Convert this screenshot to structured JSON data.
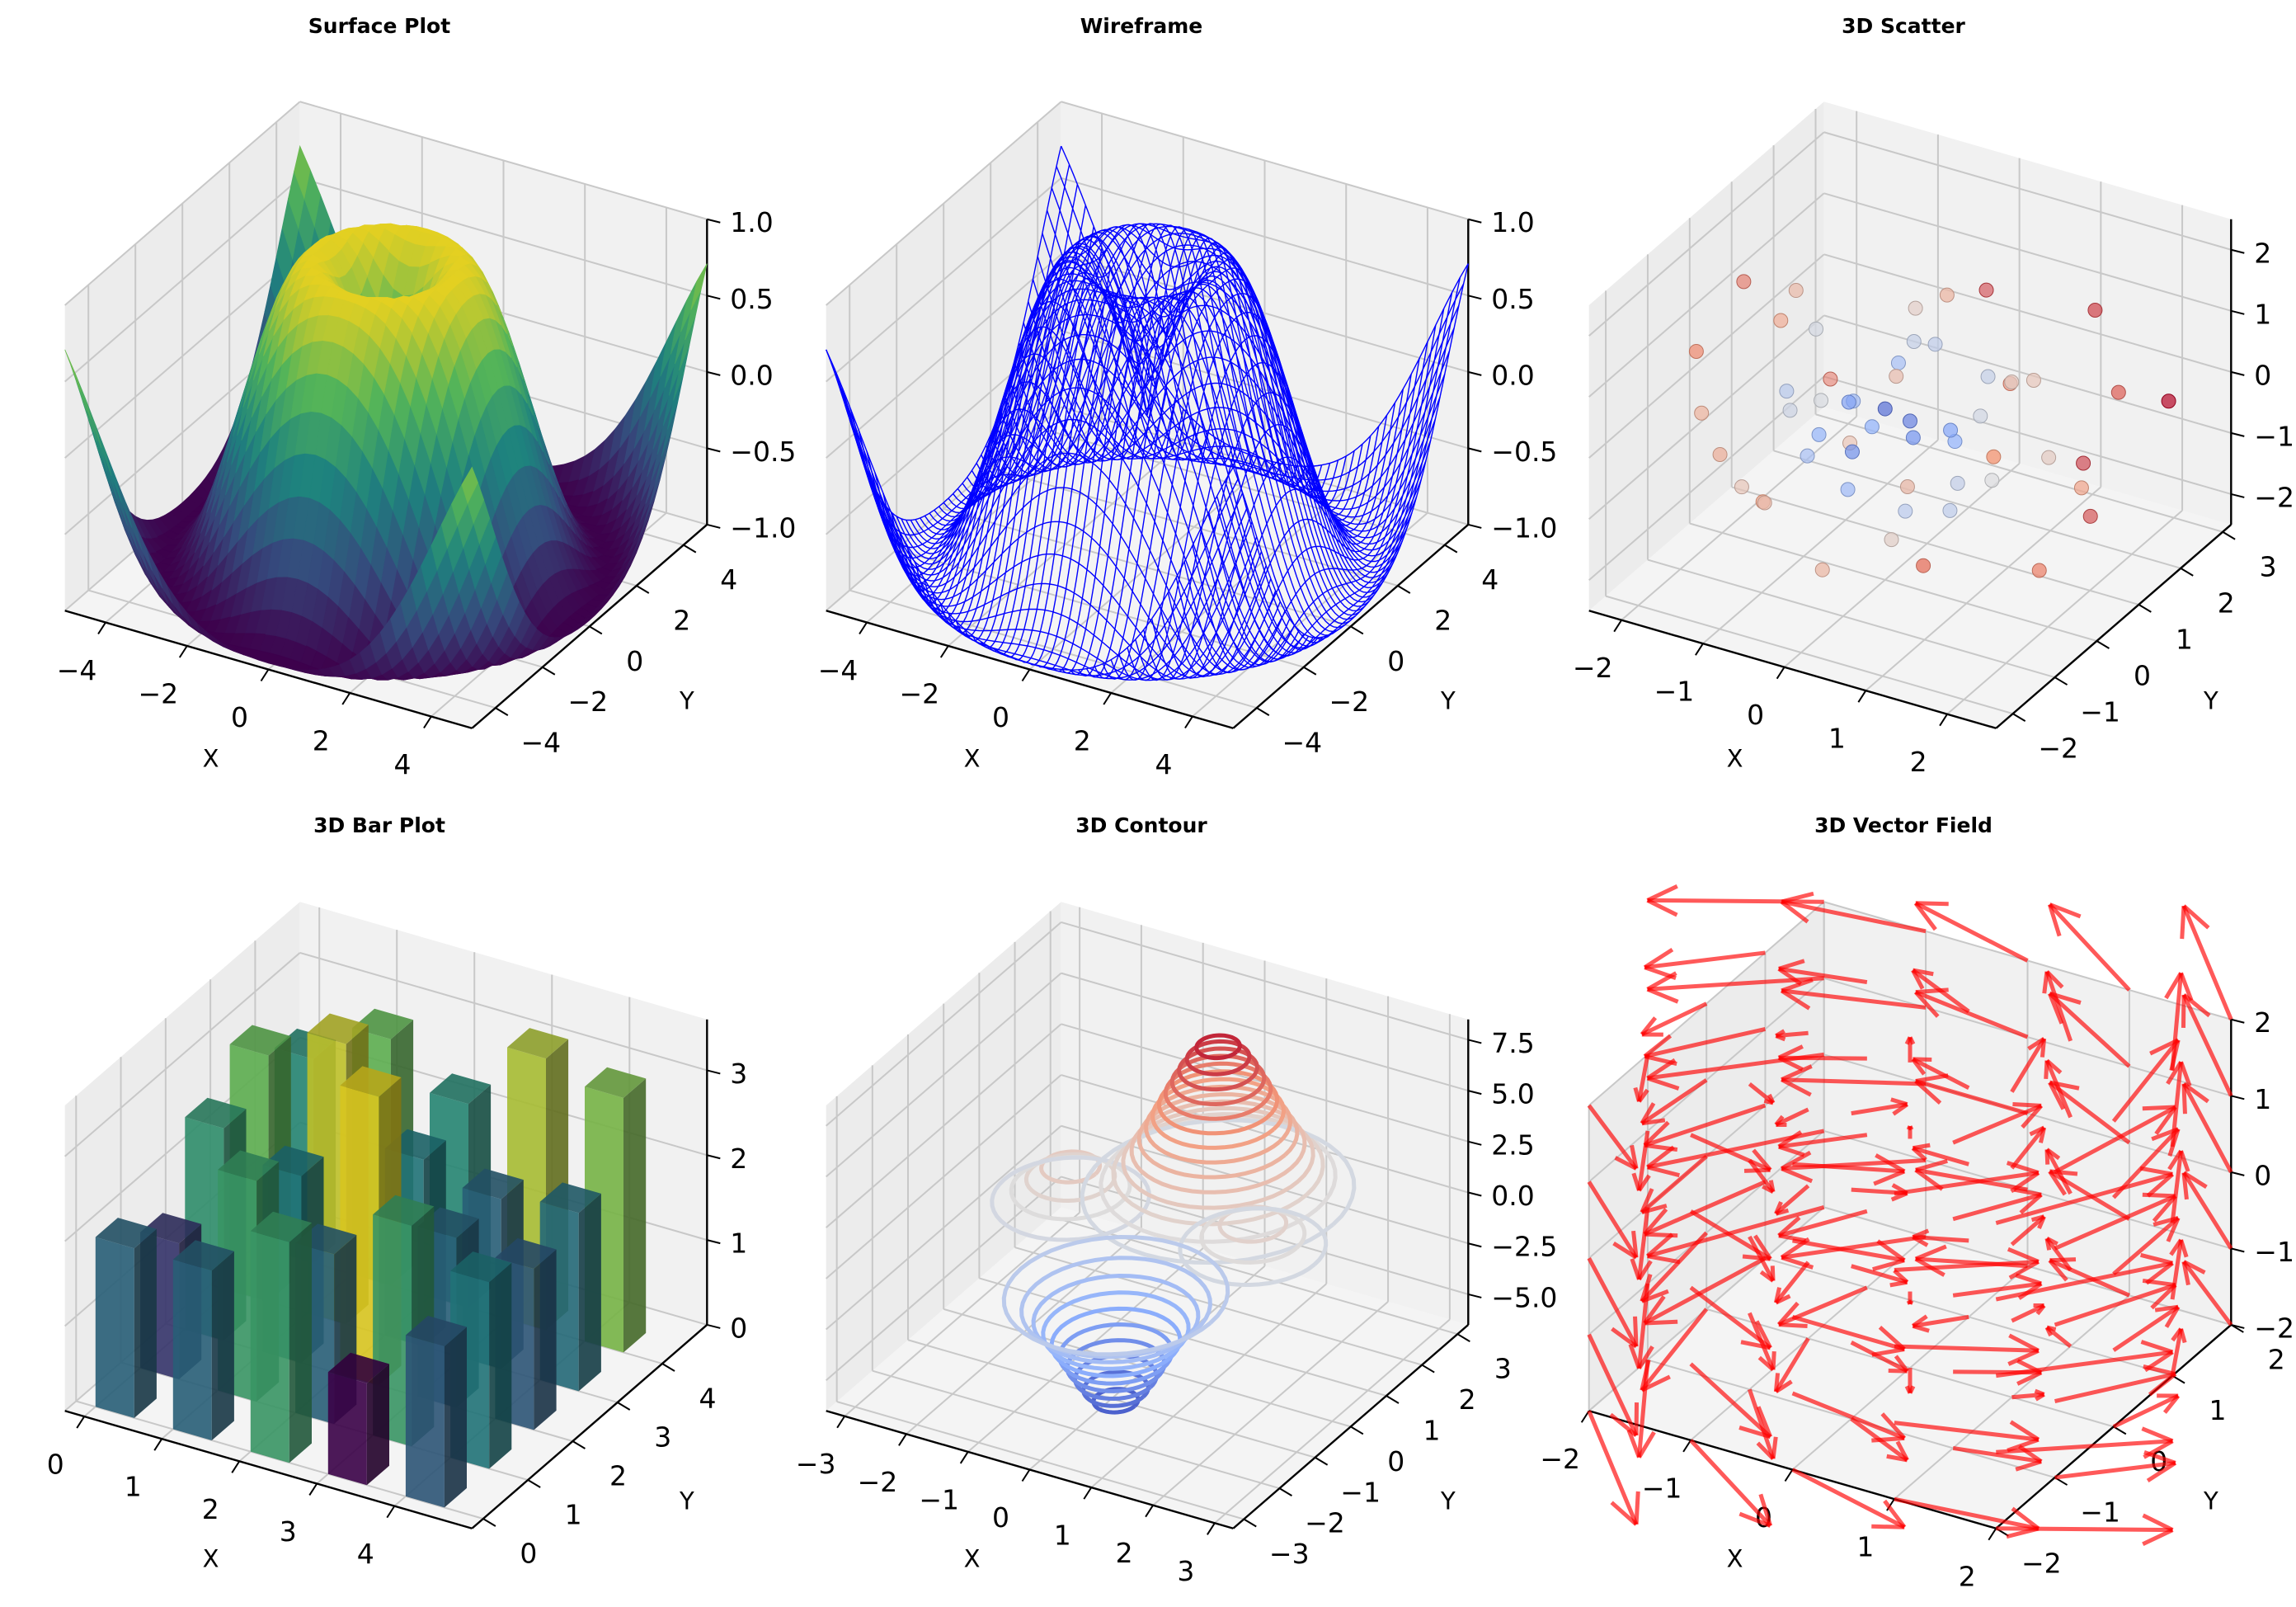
{
  "chart_data": [
    {
      "type": "surface",
      "title": "Surface Plot",
      "xlabel": "X",
      "ylabel": "Y",
      "function": "z = sin(sqrt(x^2 + y^2))",
      "xlim": [
        -5,
        5
      ],
      "ylim": [
        -5,
        5
      ],
      "zlim": [
        -1,
        1
      ],
      "xticks": [
        "−4",
        "−2",
        "0",
        "2",
        "4"
      ],
      "yticks": [
        "−4",
        "−2",
        "0",
        "2",
        "4"
      ],
      "zticks": [
        "−1.0",
        "−0.5",
        "0.0",
        "0.5",
        "1.0"
      ],
      "colormap": "viridis",
      "grid": true
    },
    {
      "type": "wireframe",
      "title": "Wireframe",
      "xlabel": "X",
      "ylabel": "Y",
      "function": "z = sin(sqrt(x^2 + y^2))",
      "xlim": [
        -5,
        5
      ],
      "ylim": [
        -5,
        5
      ],
      "zlim": [
        -1,
        1
      ],
      "xticks": [
        "−4",
        "−2",
        "0",
        "2",
        "4"
      ],
      "yticks": [
        "−4",
        "−2",
        "0",
        "2",
        "4"
      ],
      "zticks": [
        "−1.0",
        "−0.5",
        "0.0",
        "0.5",
        "1.0"
      ],
      "line_color": "#0000ff",
      "grid": true
    },
    {
      "type": "scatter",
      "title": "3D Scatter",
      "xlabel": "X",
      "ylabel": "Y",
      "xlim": [
        -2.4,
        2.6
      ],
      "ylim": [
        -2.4,
        3.2
      ],
      "zlim": [
        -2.5,
        2.5
      ],
      "xticks": [
        "−2",
        "−1",
        "0",
        "1",
        "2"
      ],
      "yticks": [
        "−2",
        "−1",
        "0",
        "1",
        "2",
        "3"
      ],
      "zticks": [
        "−2",
        "−1",
        "0",
        "1",
        "2"
      ],
      "colormap": "coolwarm",
      "color_by": "distance from origin",
      "points": [
        [
          0.5,
          -0.3,
          0.2
        ],
        [
          -1.2,
          0.8,
          -0.5
        ],
        [
          1.6,
          1.9,
          1.4
        ],
        [
          0.1,
          0.4,
          -0.1
        ],
        [
          -0.6,
          -1.1,
          0.7
        ],
        [
          2.1,
          -0.4,
          -1.3
        ],
        [
          -1.9,
          1.2,
          0.3
        ],
        [
          0.8,
          0.9,
          0.6
        ],
        [
          -0.2,
          -0.5,
          -0.8
        ],
        [
          1.1,
          -1.6,
          0.4
        ],
        [
          -0.9,
          0.1,
          1.2
        ],
        [
          0.3,
          2.4,
          -0.6
        ],
        [
          1.7,
          0.6,
          -0.2
        ],
        [
          -1.4,
          -0.7,
          -1.1
        ],
        [
          0.6,
          -0.9,
          1.6
        ],
        [
          -0.4,
          1.5,
          0.9
        ],
        [
          2.3,
          1.1,
          0.8
        ],
        [
          -2.1,
          -0.3,
          -0.4
        ],
        [
          0.0,
          0.0,
          0.3
        ],
        [
          0.9,
          -0.2,
          -0.9
        ],
        [
          -0.7,
          0.6,
          -0.2
        ],
        [
          1.3,
          2.2,
          -1.4
        ],
        [
          -1.1,
          -1.8,
          0.2
        ],
        [
          0.4,
          0.7,
          1.9
        ],
        [
          -0.1,
          -1.3,
          -1.6
        ],
        [
          1.9,
          -1.1,
          0.9
        ],
        [
          -1.6,
          1.8,
          -0.9
        ],
        [
          0.7,
          0.2,
          0.1
        ],
        [
          -0.3,
          0.9,
          0.4
        ],
        [
          0.2,
          -0.7,
          0.5
        ],
        [
          1.4,
          0.3,
          1.1
        ],
        [
          -0.8,
          -0.3,
          -0.6
        ],
        [
          0.5,
          1.3,
          -0.4
        ],
        [
          -1.3,
          0.4,
          1.5
        ],
        [
          2.0,
          0.8,
          -0.7
        ],
        [
          -0.5,
          -1.9,
          -0.3
        ],
        [
          1.0,
          1.6,
          0.2
        ],
        [
          -2.2,
          0.9,
          1.0
        ],
        [
          0.3,
          -0.1,
          -1.2
        ],
        [
          -0.6,
          0.3,
          0.0
        ],
        [
          1.2,
          -0.6,
          -0.1
        ],
        [
          -1.0,
          1.1,
          -1.3
        ],
        [
          0.8,
          -1.4,
          -0.7
        ],
        [
          -0.2,
          2.8,
          0.5
        ],
        [
          1.5,
          -2.0,
          -0.5
        ],
        [
          -1.7,
          -1.2,
          1.3
        ],
        [
          0.6,
          0.5,
          -0.3
        ],
        [
          -0.4,
          -0.8,
          0.2
        ],
        [
          0.1,
          1.0,
          0.8
        ],
        [
          2.4,
          2.1,
          0.1
        ],
        [
          -1.5,
          0.0,
          -1.8
        ],
        [
          0.9,
          0.8,
          -1.0
        ],
        [
          -0.9,
          -0.6,
          0.6
        ],
        [
          0.2,
          0.3,
          1.3
        ],
        [
          1.8,
          1.4,
          -1.6
        ],
        [
          -0.3,
          -0.2,
          -0.4
        ]
      ],
      "grid": true
    },
    {
      "type": "bar3d",
      "title": "3D Bar Plot",
      "xlabel": "X",
      "ylabel": "Y",
      "xlim": [
        -0.25,
        5.0
      ],
      "ylim": [
        -0.25,
        5.0
      ],
      "zlim": [
        0,
        3.6
      ],
      "xticks": [
        "0",
        "1",
        "2",
        "3",
        "4"
      ],
      "yticks": [
        "0",
        "1",
        "2",
        "3",
        "4"
      ],
      "zticks": [
        "0",
        "1",
        "2",
        "3"
      ],
      "colormap": "viridis",
      "heights": [
        [
          2.0,
          1.6,
          2.5,
          2.9,
          2.4
        ],
        [
          2.0,
          2.6,
          2.2,
          3.3,
          2.9
        ],
        [
          2.6,
          2.0,
          3.4,
          2.2,
          2.4
        ],
        [
          1.2,
          2.6,
          2.0,
          2.0,
          3.2
        ],
        [
          1.9,
          2.2,
          1.9,
          2.1,
          3.0
        ]
      ],
      "grid": true
    },
    {
      "type": "contour3d",
      "title": "3D Contour",
      "xlabel": "X",
      "ylabel": "Y",
      "xlim": [
        -3.3,
        3.3
      ],
      "ylim": [
        -3.3,
        3.3
      ],
      "zlim": [
        -6.5,
        8.5
      ],
      "xticks": [
        "−3",
        "−2",
        "−1",
        "0",
        "1",
        "2",
        "3"
      ],
      "yticks": [
        "−3",
        "−2",
        "−1",
        "0",
        "1",
        "2",
        "3"
      ],
      "zticks": [
        "−5.0",
        "−2.5",
        "0.0",
        "2.5",
        "5.0",
        "7.5"
      ],
      "colormap": "coolwarm",
      "features": [
        {
          "kind": "peak",
          "amplitude": 8.2,
          "center": [
            0.4,
            1.3
          ],
          "sigma": 0.8
        },
        {
          "kind": "well",
          "amplitude": -6.3,
          "center": [
            0.3,
            -1.4
          ],
          "sigma": 0.7
        },
        {
          "kind": "peak",
          "amplitude": 2.6,
          "center": [
            -1.3,
            0.1
          ],
          "sigma": 0.6
        },
        {
          "kind": "peak",
          "amplitude": 2.2,
          "center": [
            1.6,
            0.2
          ],
          "sigma": 0.6
        }
      ],
      "grid": true
    },
    {
      "type": "quiver",
      "title": "3D Vector Field",
      "xlabel": "X",
      "ylabel": "Y",
      "xlim": [
        -2,
        2
      ],
      "ylim": [
        -2,
        2
      ],
      "zlim": [
        -2,
        2
      ],
      "xticks": [
        "−2",
        "−1",
        "0",
        "1",
        "2"
      ],
      "yticks": [
        "−2",
        "−1",
        "0",
        "1",
        "2"
      ],
      "zticks": [
        "−2",
        "−1",
        "0",
        "1",
        "2"
      ],
      "grid_points": [
        -2,
        -1,
        0,
        1,
        2
      ],
      "field": "u = -y, v = x, w = 0.3 z",
      "color": "#ff0000",
      "grid": true
    }
  ]
}
